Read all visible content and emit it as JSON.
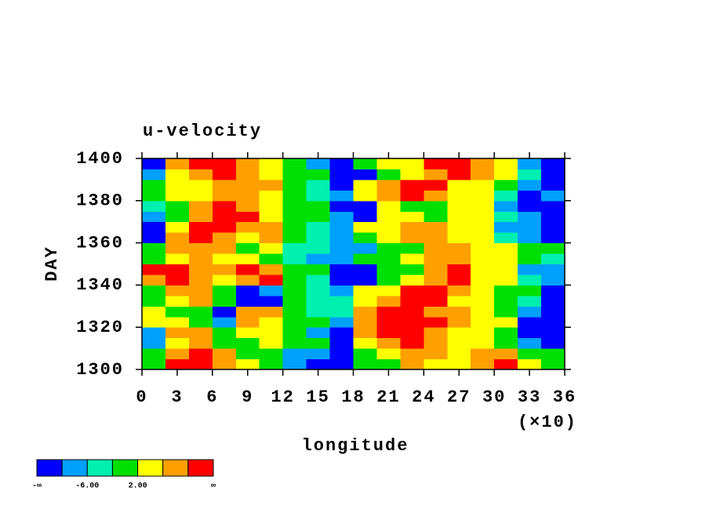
{
  "chart_data": {
    "type": "contour",
    "title": "u-velocity",
    "x_label": "longitude",
    "y_label": "DAY",
    "x_multiplier_label": "(×10)",
    "xlim": [
      0,
      36
    ],
    "xticks": [
      0,
      3,
      6,
      9,
      12,
      15,
      18,
      21,
      24,
      27,
      30,
      33,
      36
    ],
    "ylim": [
      1300,
      1400
    ],
    "yticks": [
      1300,
      1320,
      1340,
      1360,
      1380,
      1400
    ],
    "x": [
      1,
      3,
      5,
      7,
      9,
      11,
      13,
      15,
      17,
      19,
      21,
      23,
      25,
      27,
      29,
      31,
      33,
      35
    ],
    "y": [
      1302.5,
      1307.5,
      1312.5,
      1317.5,
      1322.5,
      1327.5,
      1332.5,
      1337.5,
      1342.5,
      1347.5,
      1352.5,
      1357.5,
      1362.5,
      1367.5,
      1372.5,
      1377.5,
      1382.5,
      1387.5,
      1392.5,
      1397.5
    ],
    "z": [
      [
        0,
        12,
        12,
        8,
        4,
        0,
        -8,
        -12,
        -12,
        0,
        0,
        8,
        4,
        4,
        8,
        12,
        4,
        0
      ],
      [
        0,
        8,
        12,
        8,
        0,
        0,
        -8,
        -8,
        -12,
        0,
        4,
        8,
        8,
        4,
        8,
        8,
        0,
        0
      ],
      [
        -8,
        4,
        8,
        0,
        0,
        4,
        0,
        0,
        -12,
        4,
        8,
        12,
        8,
        4,
        4,
        0,
        -8,
        -12
      ],
      [
        -8,
        8,
        8,
        0,
        4,
        4,
        0,
        -8,
        -12,
        8,
        12,
        12,
        8,
        4,
        4,
        0,
        -12,
        -12
      ],
      [
        4,
        4,
        0,
        -8,
        8,
        4,
        0,
        0,
        -8,
        8,
        12,
        12,
        12,
        8,
        4,
        4,
        -12,
        -12
      ],
      [
        4,
        0,
        0,
        -12,
        8,
        8,
        0,
        -4,
        -4,
        8,
        12,
        12,
        8,
        8,
        4,
        0,
        -8,
        -12
      ],
      [
        0,
        4,
        8,
        0,
        -12,
        -12,
        0,
        -4,
        -4,
        4,
        8,
        12,
        12,
        4,
        4,
        0,
        -4,
        -12
      ],
      [
        0,
        8,
        8,
        0,
        -12,
        -8,
        0,
        -4,
        -8,
        4,
        4,
        12,
        12,
        8,
        4,
        0,
        0,
        -12
      ],
      [
        8,
        12,
        8,
        4,
        8,
        12,
        0,
        -4,
        -12,
        -12,
        0,
        4,
        8,
        12,
        4,
        4,
        -4,
        -8
      ],
      [
        12,
        12,
        8,
        8,
        12,
        8,
        0,
        0,
        -12,
        -12,
        0,
        0,
        8,
        12,
        4,
        4,
        -8,
        -8
      ],
      [
        0,
        4,
        8,
        4,
        4,
        0,
        -4,
        -8,
        -8,
        0,
        0,
        4,
        8,
        8,
        4,
        4,
        0,
        -4
      ],
      [
        0,
        8,
        8,
        8,
        0,
        4,
        -4,
        -4,
        -8,
        -8,
        0,
        0,
        8,
        8,
        4,
        4,
        0,
        0
      ],
      [
        -12,
        8,
        12,
        8,
        4,
        8,
        0,
        -4,
        -8,
        0,
        4,
        8,
        8,
        4,
        4,
        -4,
        -8,
        -12
      ],
      [
        -12,
        4,
        12,
        12,
        8,
        8,
        0,
        -4,
        -8,
        4,
        4,
        8,
        8,
        4,
        4,
        -8,
        -8,
        -12
      ],
      [
        -8,
        0,
        8,
        12,
        12,
        4,
        0,
        0,
        -8,
        -12,
        4,
        4,
        0,
        4,
        4,
        -4,
        -8,
        -12
      ],
      [
        -4,
        0,
        8,
        12,
        8,
        4,
        0,
        0,
        -12,
        -12,
        4,
        0,
        0,
        4,
        4,
        -8,
        -12,
        -12
      ],
      [
        0,
        4,
        4,
        8,
        8,
        4,
        0,
        -4,
        -8,
        4,
        8,
        12,
        8,
        4,
        4,
        -4,
        -12,
        -8
      ],
      [
        0,
        4,
        4,
        8,
        8,
        8,
        0,
        -4,
        -12,
        4,
        8,
        12,
        12,
        4,
        4,
        0,
        -8,
        -12
      ],
      [
        -8,
        4,
        8,
        12,
        8,
        4,
        0,
        0,
        -12,
        -12,
        0,
        4,
        8,
        12,
        8,
        4,
        -4,
        -12
      ],
      [
        -12,
        8,
        12,
        12,
        8,
        4,
        0,
        -8,
        -12,
        0,
        4,
        4,
        12,
        12,
        8,
        4,
        -8,
        -12
      ]
    ],
    "colorbar": {
      "colors": [
        "#0000ff",
        "#00a0ff",
        "#00f0b0",
        "#00e000",
        "#ffff00",
        "#ffa000",
        "#ff0000"
      ],
      "levels": [
        -10,
        -6,
        -2,
        2,
        6,
        10
      ],
      "ticks": [
        {
          "value": -6,
          "label": "-6.00"
        },
        {
          "value": 2,
          "label": "2.00"
        }
      ],
      "low_label": "-∞",
      "high_label": "∞"
    }
  }
}
